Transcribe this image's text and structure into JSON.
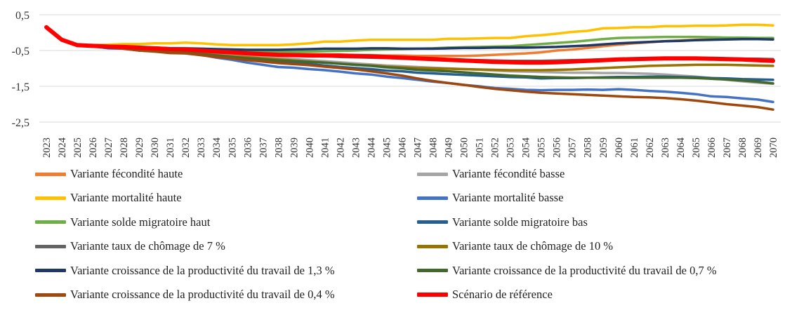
{
  "chart_data": {
    "type": "line",
    "title": "",
    "xlabel": "",
    "ylabel": "",
    "ylim": [
      -2.5,
      0.5
    ],
    "yticks": [
      0.5,
      -0.5,
      -1.5,
      -2.5
    ],
    "ytick_labels": [
      "0,5",
      "-0,5",
      "-1,5",
      "-2,5"
    ],
    "grid": "horizontal",
    "legend_position": "bottom",
    "x": [
      2023,
      2024,
      2025,
      2026,
      2027,
      2028,
      2029,
      2030,
      2031,
      2032,
      2033,
      2034,
      2035,
      2036,
      2037,
      2038,
      2039,
      2040,
      2041,
      2042,
      2043,
      2044,
      2045,
      2046,
      2047,
      2048,
      2049,
      2050,
      2051,
      2052,
      2053,
      2054,
      2055,
      2056,
      2057,
      2058,
      2059,
      2060,
      2061,
      2062,
      2063,
      2064,
      2065,
      2066,
      2067,
      2068,
      2069,
      2070
    ],
    "series": [
      {
        "name": "Variante fécondité haute",
        "color": "#ED7D31",
        "width": 3.5,
        "values": [
          0.15,
          -0.2,
          -0.35,
          -0.37,
          -0.4,
          -0.4,
          -0.45,
          -0.47,
          -0.5,
          -0.5,
          -0.52,
          -0.55,
          -0.57,
          -0.58,
          -0.58,
          -0.59,
          -0.6,
          -0.6,
          -0.61,
          -0.62,
          -0.63,
          -0.63,
          -0.64,
          -0.64,
          -0.65,
          -0.65,
          -0.65,
          -0.65,
          -0.64,
          -0.62,
          -0.6,
          -0.58,
          -0.55,
          -0.5,
          -0.47,
          -0.43,
          -0.38,
          -0.34,
          -0.3,
          -0.27,
          -0.24,
          -0.22,
          -0.2,
          -0.19,
          -0.18,
          -0.17,
          -0.17,
          -0.17
        ]
      },
      {
        "name": "Variante fécondité basse",
        "color": "#A5A5A5",
        "width": 3.5,
        "values": [
          0.15,
          -0.2,
          -0.35,
          -0.37,
          -0.4,
          -0.4,
          -0.45,
          -0.47,
          -0.5,
          -0.5,
          -0.53,
          -0.57,
          -0.61,
          -0.65,
          -0.68,
          -0.71,
          -0.74,
          -0.77,
          -0.8,
          -0.83,
          -0.86,
          -0.89,
          -0.92,
          -0.94,
          -0.96,
          -0.98,
          -1.0,
          -1.02,
          -1.04,
          -1.06,
          -1.08,
          -1.09,
          -1.1,
          -1.11,
          -1.12,
          -1.12,
          -1.13,
          -1.13,
          -1.14,
          -1.15,
          -1.17,
          -1.2,
          -1.23,
          -1.27,
          -1.32,
          -1.36,
          -1.4,
          -1.43
        ]
      },
      {
        "name": "Variante mortalité haute",
        "color": "#FFC000",
        "width": 3.5,
        "values": [
          0.15,
          -0.2,
          -0.35,
          -0.35,
          -0.34,
          -0.32,
          -0.32,
          -0.3,
          -0.3,
          -0.28,
          -0.3,
          -0.33,
          -0.35,
          -0.35,
          -0.35,
          -0.35,
          -0.33,
          -0.3,
          -0.25,
          -0.25,
          -0.22,
          -0.2,
          -0.2,
          -0.2,
          -0.2,
          -0.2,
          -0.17,
          -0.17,
          -0.16,
          -0.15,
          -0.15,
          -0.1,
          -0.07,
          -0.03,
          0.02,
          0.05,
          0.12,
          0.13,
          0.15,
          0.15,
          0.18,
          0.18,
          0.19,
          0.19,
          0.2,
          0.22,
          0.22,
          0.2
        ]
      },
      {
        "name": "Variante mortalité basse",
        "color": "#4472C4",
        "width": 3.5,
        "values": [
          0.15,
          -0.2,
          -0.35,
          -0.38,
          -0.44,
          -0.45,
          -0.5,
          -0.52,
          -0.56,
          -0.56,
          -0.62,
          -0.7,
          -0.76,
          -0.84,
          -0.9,
          -0.96,
          -0.98,
          -1.02,
          -1.05,
          -1.09,
          -1.14,
          -1.17,
          -1.23,
          -1.27,
          -1.32,
          -1.37,
          -1.41,
          -1.46,
          -1.5,
          -1.55,
          -1.57,
          -1.6,
          -1.61,
          -1.6,
          -1.6,
          -1.59,
          -1.6,
          -1.58,
          -1.6,
          -1.63,
          -1.65,
          -1.68,
          -1.72,
          -1.78,
          -1.8,
          -1.84,
          -1.87,
          -1.94
        ]
      },
      {
        "name": "Variante solde migratoire haut",
        "color": "#70AD47",
        "width": 3.5,
        "values": [
          0.15,
          -0.2,
          -0.35,
          -0.37,
          -0.38,
          -0.4,
          -0.42,
          -0.43,
          -0.45,
          -0.45,
          -0.47,
          -0.5,
          -0.52,
          -0.53,
          -0.54,
          -0.54,
          -0.54,
          -0.53,
          -0.52,
          -0.51,
          -0.5,
          -0.48,
          -0.47,
          -0.46,
          -0.45,
          -0.44,
          -0.42,
          -0.41,
          -0.4,
          -0.39,
          -0.38,
          -0.35,
          -0.32,
          -0.29,
          -0.26,
          -0.22,
          -0.18,
          -0.15,
          -0.14,
          -0.13,
          -0.12,
          -0.12,
          -0.12,
          -0.13,
          -0.14,
          -0.14,
          -0.15,
          -0.15
        ]
      },
      {
        "name": "Variante solde migratoire bas",
        "color": "#255E91",
        "width": 3.5,
        "values": [
          0.15,
          -0.2,
          -0.35,
          -0.37,
          -0.43,
          -0.44,
          -0.5,
          -0.52,
          -0.56,
          -0.57,
          -0.6,
          -0.65,
          -0.69,
          -0.73,
          -0.77,
          -0.81,
          -0.85,
          -0.88,
          -0.92,
          -0.96,
          -0.99,
          -1.02,
          -1.06,
          -1.08,
          -1.12,
          -1.14,
          -1.16,
          -1.18,
          -1.2,
          -1.22,
          -1.24,
          -1.25,
          -1.28,
          -1.27,
          -1.27,
          -1.26,
          -1.25,
          -1.24,
          -1.24,
          -1.23,
          -1.23,
          -1.24,
          -1.25,
          -1.27,
          -1.28,
          -1.3,
          -1.31,
          -1.32
        ]
      },
      {
        "name": "Variante taux de chômage de 7 %",
        "color": "#636363",
        "width": 3.5,
        "values": [
          0.15,
          -0.2,
          -0.35,
          -0.37,
          -0.4,
          -0.41,
          -0.45,
          -0.47,
          -0.5,
          -0.5,
          -0.52,
          -0.55,
          -0.57,
          -0.59,
          -0.6,
          -0.62,
          -0.63,
          -0.65,
          -0.66,
          -0.68,
          -0.69,
          -0.7,
          -0.71,
          -0.72,
          -0.73,
          -0.74,
          -0.75,
          -0.76,
          -0.77,
          -0.78,
          -0.79,
          -0.79,
          -0.79,
          -0.78,
          -0.77,
          -0.76,
          -0.75,
          -0.74,
          -0.73,
          -0.72,
          -0.71,
          -0.71,
          -0.71,
          -0.71,
          -0.72,
          -0.73,
          -0.73,
          -0.74
        ]
      },
      {
        "name": "Variante taux de chômage de 10 %",
        "color": "#997300",
        "width": 3.5,
        "values": [
          0.15,
          -0.2,
          -0.35,
          -0.37,
          -0.41,
          -0.44,
          -0.48,
          -0.5,
          -0.54,
          -0.55,
          -0.59,
          -0.63,
          -0.66,
          -0.69,
          -0.72,
          -0.75,
          -0.78,
          -0.81,
          -0.84,
          -0.87,
          -0.9,
          -0.92,
          -0.95,
          -0.97,
          -0.99,
          -1.0,
          -1.01,
          -1.02,
          -1.03,
          -1.04,
          -1.05,
          -1.05,
          -1.05,
          -1.04,
          -1.03,
          -1.01,
          -0.99,
          -0.97,
          -0.95,
          -0.93,
          -0.92,
          -0.91,
          -0.9,
          -0.9,
          -0.9,
          -0.91,
          -0.92,
          -0.93
        ]
      },
      {
        "name": "Variante croissance de la productivité du travail de 1,3 %",
        "color": "#1F3864",
        "width": 3.5,
        "values": [
          0.15,
          -0.2,
          -0.35,
          -0.37,
          -0.38,
          -0.39,
          -0.41,
          -0.42,
          -0.44,
          -0.44,
          -0.45,
          -0.46,
          -0.47,
          -0.48,
          -0.48,
          -0.48,
          -0.47,
          -0.46,
          -0.45,
          -0.45,
          -0.45,
          -0.44,
          -0.44,
          -0.45,
          -0.45,
          -0.45,
          -0.44,
          -0.43,
          -0.43,
          -0.42,
          -0.42,
          -0.42,
          -0.41,
          -0.4,
          -0.38,
          -0.36,
          -0.33,
          -0.3,
          -0.28,
          -0.26,
          -0.24,
          -0.23,
          -0.21,
          -0.2,
          -0.19,
          -0.18,
          -0.18,
          -0.19
        ]
      },
      {
        "name": "Variante croissance de la productivité du travail de 0,7 %",
        "color": "#43682B",
        "width": 3.5,
        "values": [
          0.15,
          -0.2,
          -0.35,
          -0.37,
          -0.41,
          -0.44,
          -0.5,
          -0.52,
          -0.56,
          -0.56,
          -0.6,
          -0.64,
          -0.68,
          -0.72,
          -0.75,
          -0.78,
          -0.8,
          -0.82,
          -0.84,
          -0.87,
          -0.9,
          -0.93,
          -0.97,
          -1.0,
          -1.04,
          -1.06,
          -1.08,
          -1.11,
          -1.14,
          -1.17,
          -1.2,
          -1.22,
          -1.24,
          -1.25,
          -1.26,
          -1.26,
          -1.26,
          -1.26,
          -1.26,
          -1.26,
          -1.26,
          -1.26,
          -1.27,
          -1.29,
          -1.31,
          -1.34,
          -1.37,
          -1.42
        ]
      },
      {
        "name": "Variante croissance de la productivité du travail de 0,4 %",
        "color": "#9E480E",
        "width": 3.5,
        "values": [
          0.15,
          -0.2,
          -0.35,
          -0.37,
          -0.41,
          -0.45,
          -0.5,
          -0.53,
          -0.57,
          -0.58,
          -0.63,
          -0.68,
          -0.72,
          -0.77,
          -0.81,
          -0.85,
          -0.88,
          -0.91,
          -0.95,
          -0.99,
          -1.03,
          -1.08,
          -1.14,
          -1.2,
          -1.28,
          -1.35,
          -1.41,
          -1.46,
          -1.52,
          -1.57,
          -1.61,
          -1.65,
          -1.68,
          -1.7,
          -1.72,
          -1.74,
          -1.76,
          -1.78,
          -1.8,
          -1.81,
          -1.83,
          -1.86,
          -1.9,
          -1.95,
          -2.0,
          -2.04,
          -2.08,
          -2.15
        ]
      },
      {
        "name": "Scénario de référence",
        "color": "#FF0000",
        "width": 6,
        "values": [
          0.15,
          -0.2,
          -0.35,
          -0.37,
          -0.39,
          -0.4,
          -0.42,
          -0.44,
          -0.46,
          -0.47,
          -0.5,
          -0.53,
          -0.55,
          -0.58,
          -0.6,
          -0.62,
          -0.63,
          -0.64,
          -0.64,
          -0.64,
          -0.65,
          -0.66,
          -0.68,
          -0.7,
          -0.72,
          -0.74,
          -0.76,
          -0.78,
          -0.8,
          -0.82,
          -0.83,
          -0.84,
          -0.84,
          -0.83,
          -0.81,
          -0.79,
          -0.77,
          -0.75,
          -0.74,
          -0.73,
          -0.72,
          -0.72,
          -0.72,
          -0.73,
          -0.74,
          -0.75,
          -0.77,
          -0.79
        ]
      }
    ]
  }
}
